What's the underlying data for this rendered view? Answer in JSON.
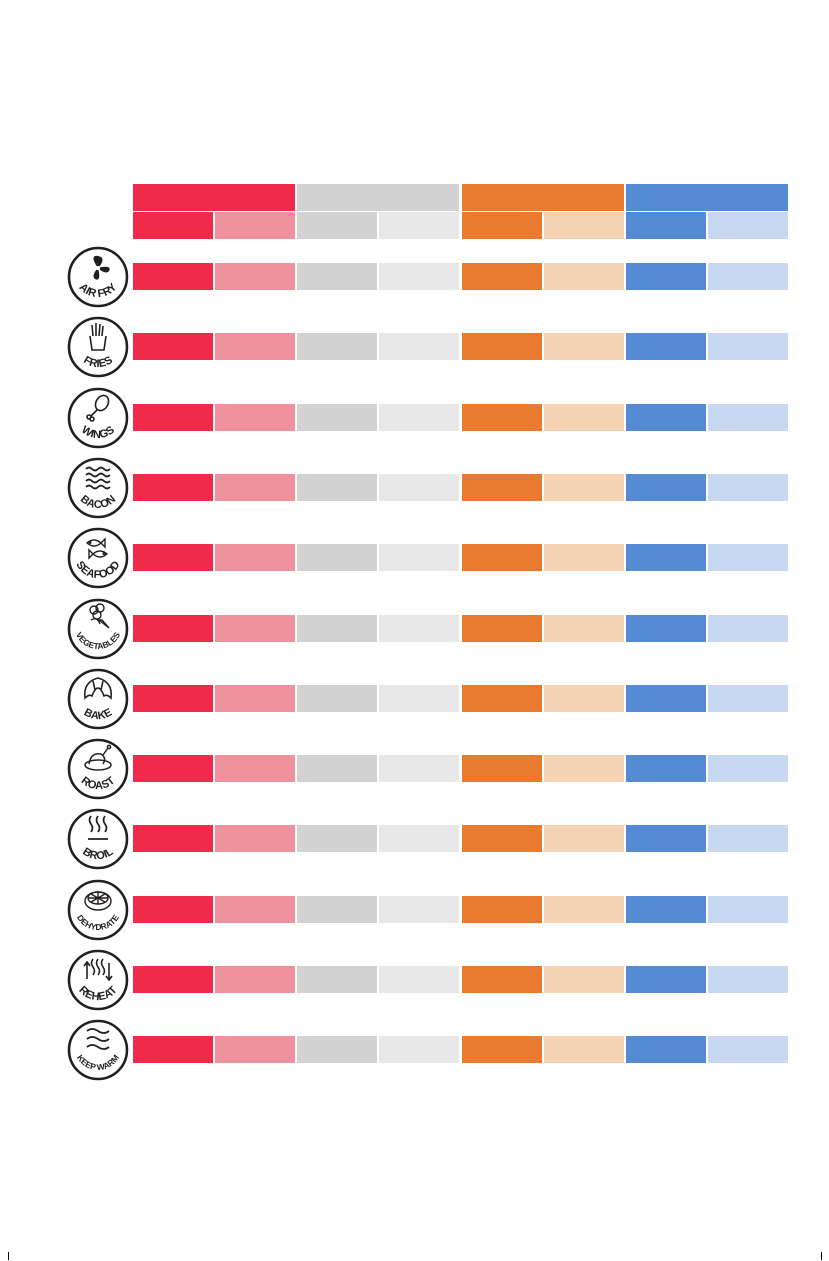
{
  "colors": {
    "red": "#ef2a4a",
    "pink": "#f0919e",
    "gray": "#d2d2d2",
    "lightgray": "#e8e8e8",
    "orange": "#ea7a2f",
    "peach": "#f6d3b5",
    "blue": "#548bd3",
    "lightblue": "#c8d8f1",
    "icon_stroke": "#231f20"
  },
  "column_groups": [
    {
      "color": "red",
      "sub": [
        "red",
        "pink"
      ]
    },
    {
      "color": "gray",
      "sub": [
        "gray",
        "lightgray"
      ]
    },
    {
      "color": "orange",
      "sub": [
        "orange",
        "peach"
      ]
    },
    {
      "color": "blue",
      "sub": [
        "blue",
        "lightblue"
      ]
    }
  ],
  "functions": [
    {
      "label": "AIR FRY",
      "icon": "fan-icon"
    },
    {
      "label": "FRIES",
      "icon": "fries-icon"
    },
    {
      "label": "WINGS",
      "icon": "drumstick-icon"
    },
    {
      "label": "BACON",
      "icon": "bacon-icon"
    },
    {
      "label": "SEAFOOD",
      "icon": "fish-icon"
    },
    {
      "label": "VEGETABLES",
      "icon": "vegetables-icon"
    },
    {
      "label": "BAKE",
      "icon": "croissant-icon"
    },
    {
      "label": "ROAST",
      "icon": "roast-chicken-icon"
    },
    {
      "label": "BROIL",
      "icon": "heat-waves-icon"
    },
    {
      "label": "DEHYDRATE",
      "icon": "citrus-slice-icon"
    },
    {
      "label": "REHEAT",
      "icon": "reheat-arrows-icon"
    },
    {
      "label": "KEEP WARM",
      "icon": "warm-waves-icon"
    }
  ]
}
